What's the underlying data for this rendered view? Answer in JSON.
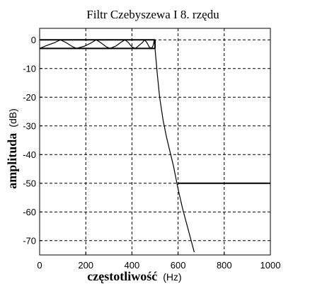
{
  "chart_data": {
    "type": "line",
    "title": "Filtr Czebyszewa  I  8. rzędu",
    "xlabel": {
      "main": "częstotliwość",
      "unit": "(Hz)"
    },
    "ylabel": {
      "main": "amplituda",
      "unit": "(dB)"
    },
    "xlim": [
      0,
      1000
    ],
    "ylim": [
      -75,
      4
    ],
    "xticks": [
      0,
      200,
      400,
      600,
      800,
      1000
    ],
    "yticks": [
      0,
      -10,
      -20,
      -30,
      -40,
      -50,
      -60,
      -70
    ],
    "grid": true,
    "series": [
      {
        "values": [
          [
            0,
            -3
          ],
          [
            30,
            -2
          ],
          [
            65,
            -1
          ],
          [
            90,
            0
          ],
          [
            115,
            -1
          ],
          [
            145,
            -2.5
          ],
          [
            160,
            -3
          ],
          [
            195,
            -2.2
          ],
          [
            225,
            -1
          ],
          [
            245,
            0
          ],
          [
            265,
            -1
          ],
          [
            290,
            -2.5
          ],
          [
            305,
            -3
          ],
          [
            330,
            -2.2
          ],
          [
            350,
            -1
          ],
          [
            370,
            0
          ],
          [
            385,
            -1
          ],
          [
            400,
            -2.5
          ],
          [
            415,
            -3
          ],
          [
            430,
            -2
          ],
          [
            445,
            -1
          ],
          [
            455,
            0
          ],
          [
            465,
            -1
          ],
          [
            475,
            -2.5
          ],
          [
            485,
            -3
          ],
          [
            492,
            -2
          ],
          [
            497,
            0
          ],
          [
            500,
            -3
          ],
          [
            510,
            -12
          ],
          [
            520,
            -20
          ],
          [
            535,
            -28
          ],
          [
            550,
            -34
          ],
          [
            565,
            -39
          ],
          [
            580,
            -44
          ],
          [
            600,
            -52
          ],
          [
            620,
            -59
          ],
          [
            640,
            -65
          ],
          [
            660,
            -71
          ],
          [
            670,
            -74
          ]
        ]
      }
    ],
    "spec_lines": [
      {
        "x": [
          0,
          500
        ],
        "y": [
          0,
          0
        ]
      },
      {
        "x": [
          0,
          500
        ],
        "y": [
          -3,
          -3
        ]
      },
      {
        "x": [
          500,
          500
        ],
        "y": [
          0,
          -3
        ]
      },
      {
        "x": [
          600,
          1000
        ],
        "y": [
          -50,
          -50
        ]
      }
    ]
  }
}
